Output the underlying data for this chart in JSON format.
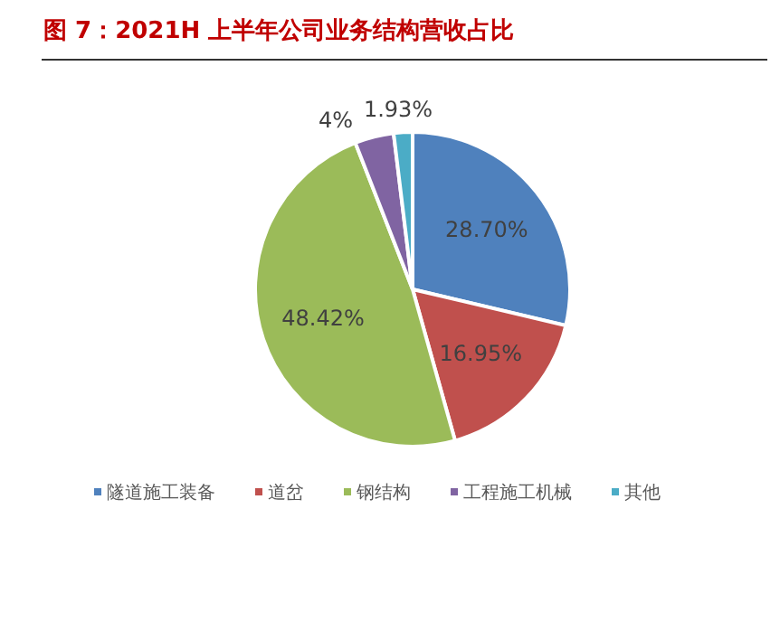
{
  "chart_data": {
    "type": "pie",
    "title": "图 7：2021H 上半年公司业务结构营收占比",
    "categories": [
      "隧道施工装备",
      "道岔",
      "钢结构",
      "工程施工机械",
      "其他"
    ],
    "values": [
      28.7,
      16.95,
      48.42,
      4,
      1.93
    ],
    "colors": [
      "#4f81bd",
      "#c0504d",
      "#9bbb59",
      "#8064a2",
      "#4bacc6"
    ],
    "value_labels": [
      "28.70%",
      "16.95%",
      "48.42%",
      "4%",
      "1.93%"
    ],
    "legend": "bottom"
  }
}
